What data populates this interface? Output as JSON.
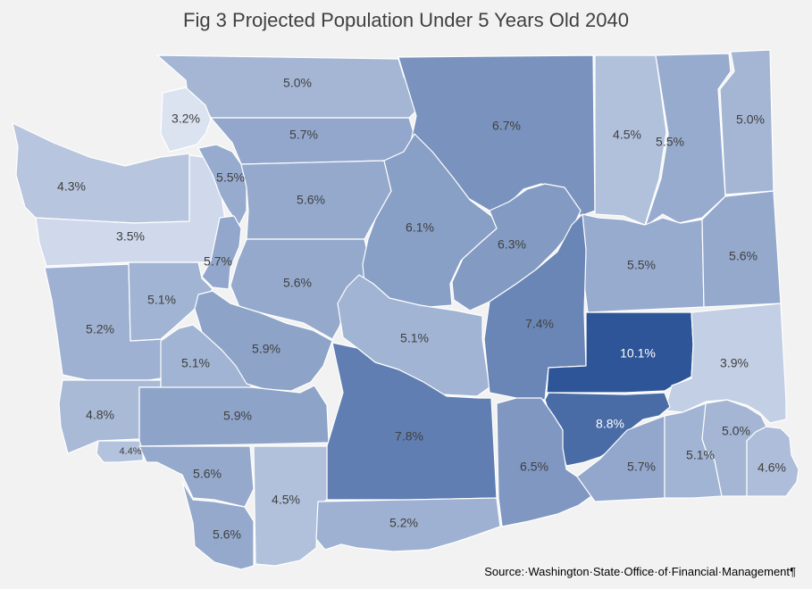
{
  "title": "Fig 3 Projected Population Under 5 Years Old 2040",
  "source": "Source:·Washington·State·Office·of·Financial·Management¶",
  "color_scale": {
    "low": "#dbe3f1",
    "high": "#2e5597"
  },
  "regions": [
    {
      "id": "whatcom",
      "label": "5.0%",
      "value": 5.0
    },
    {
      "id": "san-juan",
      "label": "3.2%",
      "value": 3.2
    },
    {
      "id": "clallam",
      "label": "4.3%",
      "value": 4.3
    },
    {
      "id": "jefferson",
      "label": "3.5%",
      "value": 3.5
    },
    {
      "id": "skagit",
      "label": "5.7%",
      "value": 5.7
    },
    {
      "id": "island",
      "label": "5.5%",
      "value": 5.5
    },
    {
      "id": "snohomish",
      "label": "5.6%",
      "value": 5.6
    },
    {
      "id": "kitsap",
      "label": "5.7%",
      "value": 5.7
    },
    {
      "id": "king",
      "label": "5.6%",
      "value": 5.6
    },
    {
      "id": "okanogan",
      "label": "6.7%",
      "value": 6.7
    },
    {
      "id": "ferry",
      "label": "4.5%",
      "value": 4.5
    },
    {
      "id": "stevens",
      "label": "5.5%",
      "value": 5.5
    },
    {
      "id": "pend-oreille",
      "label": "5.0%",
      "value": 5.0
    },
    {
      "id": "chelan",
      "label": "6.1%",
      "value": 6.1
    },
    {
      "id": "douglas",
      "label": "6.3%",
      "value": 6.3
    },
    {
      "id": "lincoln",
      "label": "5.5%",
      "value": 5.5
    },
    {
      "id": "spokane",
      "label": "5.6%",
      "value": 5.6
    },
    {
      "id": "grays-harbor",
      "label": "5.2%",
      "value": 5.2
    },
    {
      "id": "mason",
      "label": "5.1%",
      "value": 5.1
    },
    {
      "id": "thurston",
      "label": "5.1%",
      "value": 5.1
    },
    {
      "id": "pierce",
      "label": "5.9%",
      "value": 5.9
    },
    {
      "id": "kittitas",
      "label": "5.1%",
      "value": 5.1
    },
    {
      "id": "grant",
      "label": "7.4%",
      "value": 7.4
    },
    {
      "id": "adams",
      "label": "10.1%",
      "value": 10.1
    },
    {
      "id": "whitman",
      "label": "3.9%",
      "value": 3.9
    },
    {
      "id": "pacific",
      "label": "4.8%",
      "value": 4.8
    },
    {
      "id": "lewis",
      "label": "5.9%",
      "value": 5.9
    },
    {
      "id": "yakima",
      "label": "7.8%",
      "value": 7.8
    },
    {
      "id": "franklin",
      "label": "8.8%",
      "value": 8.8
    },
    {
      "id": "benton",
      "label": "6.5%",
      "value": 6.5
    },
    {
      "id": "walla-walla",
      "label": "5.7%",
      "value": 5.7
    },
    {
      "id": "columbia",
      "label": "5.1%",
      "value": 5.1
    },
    {
      "id": "garfield",
      "label": "5.0%",
      "value": 5.0
    },
    {
      "id": "asotin",
      "label": "4.6%",
      "value": 4.6
    },
    {
      "id": "wahkiakum",
      "label": "4.4%",
      "value": 4.4
    },
    {
      "id": "cowlitz",
      "label": "5.6%",
      "value": 5.6
    },
    {
      "id": "skamania",
      "label": "4.5%",
      "value": 4.5
    },
    {
      "id": "clark",
      "label": "5.6%",
      "value": 5.6
    },
    {
      "id": "klickitat",
      "label": "5.2%",
      "value": 5.2
    }
  ]
}
